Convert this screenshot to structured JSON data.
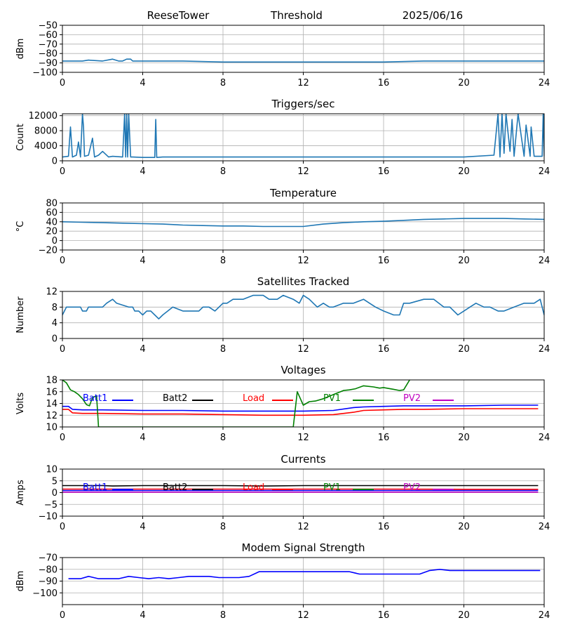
{
  "header": {
    "station": "ReeseTower",
    "mode": "Threshold",
    "date": "2025/06/16"
  },
  "chart_data": [
    {
      "type": "line",
      "title": "",
      "xlabel": "",
      "ylabel": "dBm",
      "xlim": [
        0,
        24
      ],
      "ylim": [
        -100,
        -50
      ],
      "x_ticks": [
        0,
        4,
        8,
        12,
        16,
        20,
        24
      ],
      "y_ticks": [
        -100,
        -90,
        -80,
        -70,
        -60,
        -50
      ],
      "grid": true,
      "series": [
        {
          "color": "#1f77b4",
          "x": [
            0,
            0.5,
            1,
            1.3,
            2,
            2.5,
            2.8,
            3,
            3.2,
            3.4,
            3.5,
            4,
            6,
            8,
            10,
            12,
            14,
            16,
            18,
            20,
            21,
            22,
            23,
            24
          ],
          "y": [
            -88,
            -88,
            -88,
            -87,
            -88,
            -86,
            -88,
            -88,
            -86,
            -86,
            -88,
            -88,
            -88,
            -89,
            -89,
            -89,
            -89,
            -89,
            -88,
            -88,
            -88,
            -88,
            -88,
            -88
          ]
        }
      ]
    },
    {
      "type": "line",
      "title": "Triggers/sec",
      "xlabel": "",
      "ylabel": "Count",
      "xlim": [
        0,
        24
      ],
      "ylim": [
        0,
        12500
      ],
      "x_ticks": [
        0,
        4,
        8,
        12,
        16,
        20,
        24
      ],
      "y_ticks": [
        0,
        4000,
        8000,
        12000
      ],
      "grid": true,
      "series": [
        {
          "color": "#1f77b4",
          "x": [
            0,
            0.3,
            0.4,
            0.5,
            0.7,
            0.8,
            0.9,
            1.0,
            1.05,
            1.1,
            1.3,
            1.5,
            1.6,
            1.8,
            2.0,
            2.3,
            2.5,
            3.0,
            3.1,
            3.15,
            3.2,
            3.25,
            3.3,
            3.4,
            3.5,
            4.0,
            4.6,
            4.65,
            4.7,
            5,
            8,
            12,
            16,
            20,
            21.5,
            21.7,
            21.8,
            21.9,
            22.0,
            22.1,
            22.3,
            22.4,
            22.5,
            22.7,
            23.0,
            23.1,
            23.3,
            23.35,
            23.5,
            23.9,
            23.95,
            24
          ],
          "y": [
            1000,
            1200,
            9000,
            1000,
            1500,
            5000,
            1000,
            12500,
            9000,
            1200,
            1500,
            6000,
            1000,
            1500,
            2500,
            1000,
            1200,
            1000,
            12500,
            1000,
            12500,
            1000,
            12500,
            1000,
            1000,
            900,
            900,
            11000,
            900,
            1000,
            1000,
            1000,
            1000,
            1000,
            1500,
            12500,
            1000,
            12500,
            2000,
            12500,
            2500,
            11000,
            1200,
            12500,
            1200,
            9500,
            1200,
            9000,
            1200,
            1200,
            12500,
            1200
          ]
        }
      ]
    },
    {
      "type": "line",
      "title": "Temperature",
      "xlabel": "",
      "ylabel": "°C",
      "xlim": [
        0,
        24
      ],
      "ylim": [
        -20,
        80
      ],
      "x_ticks": [
        0,
        4,
        8,
        12,
        16,
        20,
        24
      ],
      "y_ticks": [
        -20,
        0,
        20,
        40,
        60,
        80
      ],
      "grid": true,
      "series": [
        {
          "color": "#1f77b4",
          "x": [
            0,
            1,
            2,
            3,
            4,
            5,
            6,
            7,
            8,
            9,
            10,
            11,
            12,
            13,
            14,
            15,
            16,
            17,
            18,
            19,
            20,
            21,
            22,
            23,
            24
          ],
          "y": [
            40,
            39,
            38,
            37,
            36,
            35,
            33,
            32,
            31,
            31,
            30,
            30,
            30,
            35,
            38,
            40,
            41,
            43,
            45,
            46,
            47,
            47,
            47,
            46,
            45
          ]
        }
      ]
    },
    {
      "type": "line",
      "title": "Satellites Tracked",
      "xlabel": "",
      "ylabel": "Number",
      "xlim": [
        0,
        24
      ],
      "ylim": [
        0,
        12
      ],
      "x_ticks": [
        0,
        4,
        8,
        12,
        16,
        20,
        24
      ],
      "y_ticks": [
        0,
        4,
        8,
        12
      ],
      "grid": true,
      "series": [
        {
          "color": "#1f77b4",
          "x": [
            0,
            0.1,
            0.2,
            0.9,
            1.0,
            1.2,
            1.3,
            2.0,
            2.2,
            2.5,
            2.7,
            3.3,
            3.5,
            3.6,
            3.8,
            4.0,
            4.2,
            4.4,
            4.6,
            4.8,
            5.0,
            5.5,
            6.0,
            6.8,
            7.0,
            7.3,
            7.6,
            8.0,
            8.2,
            8.5,
            9.0,
            9.5,
            10.0,
            10.3,
            10.7,
            11.0,
            11.5,
            11.8,
            12.0,
            12.3,
            12.5,
            12.7,
            13.0,
            13.3,
            13.5,
            14.0,
            14.5,
            15.0,
            15.3,
            15.6,
            16.0,
            16.5,
            16.8,
            17.0,
            17.3,
            18.0,
            18.5,
            19.0,
            19.3,
            19.7,
            20.0,
            20.3,
            20.6,
            21.0,
            21.3,
            21.7,
            22.0,
            22.5,
            23.0,
            23.5,
            23.8,
            24
          ],
          "y": [
            6,
            7,
            8,
            8,
            7,
            7,
            8,
            8,
            9,
            10,
            9,
            8,
            8,
            7,
            7,
            6,
            7,
            7,
            6,
            5,
            6,
            8,
            7,
            7,
            8,
            8,
            7,
            9,
            9,
            10,
            10,
            11,
            11,
            10,
            10,
            11,
            10,
            9,
            11,
            10,
            9,
            8,
            9,
            8,
            8,
            9,
            9,
            10,
            9,
            8,
            7,
            6,
            6,
            9,
            9,
            10,
            10,
            8,
            8,
            6,
            7,
            8,
            9,
            8,
            8,
            7,
            7,
            8,
            9,
            9,
            10,
            6
          ]
        }
      ]
    },
    {
      "type": "line",
      "title": "Voltages",
      "xlabel": "",
      "ylabel": "Volts",
      "xlim": [
        0,
        24
      ],
      "ylim": [
        10,
        18
      ],
      "x_ticks": [
        0,
        4,
        8,
        12,
        16,
        20,
        24
      ],
      "y_ticks": [
        10,
        12,
        14,
        16,
        18
      ],
      "grid": true,
      "legend": [
        {
          "label": "Batt1",
          "color": "#0000ff"
        },
        {
          "label": "Batt2",
          "color": "#000000"
        },
        {
          "label": "Load",
          "color": "#ff0000"
        },
        {
          "label": "PV1",
          "color": "#008000"
        },
        {
          "label": "PV2",
          "color": "#bf00bf"
        }
      ],
      "series": [
        {
          "name": "Batt1",
          "color": "#0000ff",
          "x": [
            0,
            0.3,
            0.5,
            1.0,
            2.0,
            4.0,
            6.0,
            8.0,
            10.0,
            12.0,
            13.5,
            14.5,
            15.0,
            16.0,
            17.0,
            18.0,
            20.0,
            22.0,
            23.7
          ],
          "y": [
            13.5,
            13.5,
            13.0,
            12.9,
            12.9,
            12.8,
            12.8,
            12.7,
            12.7,
            12.7,
            12.8,
            13.3,
            13.4,
            13.5,
            13.6,
            13.6,
            13.6,
            13.7,
            13.7
          ]
        },
        {
          "name": "Load",
          "color": "#ff0000",
          "x": [
            0,
            0.3,
            0.5,
            1.0,
            2.0,
            4.0,
            6.0,
            8.0,
            10.0,
            12.0,
            13.5,
            14.5,
            15.0,
            16.0,
            17.0,
            18.0,
            20.0,
            22.0,
            23.7
          ],
          "y": [
            13.0,
            13.0,
            12.4,
            12.3,
            12.3,
            12.2,
            12.2,
            12.1,
            12.0,
            12.0,
            12.1,
            12.5,
            12.8,
            12.9,
            13.0,
            13.0,
            13.1,
            13.1,
            13.1
          ]
        },
        {
          "name": "PV1",
          "color": "#008000",
          "x": [
            0,
            0.2,
            0.4,
            0.6,
            0.8,
            1.0,
            1.2,
            1.35,
            1.5,
            1.7,
            1.8,
            11.5,
            11.7,
            12.0,
            12.3,
            12.6,
            13.0,
            13.5,
            14.0,
            14.3,
            14.6,
            15.0,
            15.5,
            15.8,
            16.0,
            16.5,
            16.8,
            17.0,
            17.3
          ],
          "y": [
            18.2,
            17.5,
            16.3,
            16.0,
            15.5,
            14.8,
            13.8,
            13.6,
            15.0,
            15.3,
            10.0,
            10.0,
            16.0,
            13.7,
            14.3,
            14.4,
            14.8,
            15.5,
            16.2,
            16.3,
            16.5,
            17.0,
            16.8,
            16.6,
            16.7,
            16.4,
            16.2,
            16.3,
            18.2
          ]
        }
      ]
    },
    {
      "type": "line",
      "title": "Currents",
      "xlabel": "",
      "ylabel": "Amps",
      "xlim": [
        0,
        24
      ],
      "ylim": [
        -10,
        10
      ],
      "x_ticks": [
        0,
        4,
        8,
        12,
        16,
        20,
        24
      ],
      "y_ticks": [
        -10,
        -5,
        0,
        5,
        10
      ],
      "grid": true,
      "legend": [
        {
          "label": "Batt1",
          "color": "#0000ff"
        },
        {
          "label": "Batt2",
          "color": "#000000"
        },
        {
          "label": "Load",
          "color": "#ff0000"
        },
        {
          "label": "PV1",
          "color": "#008000"
        },
        {
          "label": "PV2",
          "color": "#bf00bf"
        }
      ],
      "series": [
        {
          "name": "Batt2",
          "color": "#000000",
          "x": [
            0,
            2,
            2.5,
            4,
            6,
            8,
            10,
            12,
            14,
            16,
            18,
            20,
            22,
            23.7
          ],
          "y": [
            3.0,
            3.0,
            2.8,
            3.0,
            3.0,
            3.0,
            2.8,
            3.0,
            3.0,
            3.0,
            3.0,
            3.0,
            3.0,
            3.0
          ]
        },
        {
          "name": "Load",
          "color": "#ff0000",
          "x": [
            0,
            4,
            8,
            12,
            16,
            20,
            23.7
          ],
          "y": [
            1.5,
            1.5,
            1.5,
            1.5,
            1.5,
            1.4,
            1.4
          ]
        },
        {
          "name": "Batt1",
          "color": "#0000ff",
          "x": [
            0,
            4,
            8,
            12,
            16,
            20,
            23.7
          ],
          "y": [
            0.9,
            0.9,
            0.9,
            0.9,
            0.9,
            0.9,
            0.9
          ]
        },
        {
          "name": "PV2",
          "color": "#bf00bf",
          "x": [
            0,
            4,
            8,
            12,
            16,
            20,
            23.7
          ],
          "y": [
            0.2,
            0.2,
            0.2,
            0.2,
            0.2,
            0.2,
            0.2
          ]
        }
      ]
    },
    {
      "type": "line",
      "title": "Modem Signal Strength",
      "xlabel": "",
      "ylabel": "dBm",
      "xlim": [
        0,
        24
      ],
      "ylim": [
        -110,
        -70
      ],
      "x_ticks": [
        0,
        4,
        8,
        12,
        16,
        20,
        24
      ],
      "y_ticks": [
        -100,
        -90,
        -80,
        -70
      ],
      "grid": true,
      "series": [
        {
          "color": "#0000ff",
          "x": [
            0.3,
            0.9,
            1.3,
            1.8,
            2.8,
            3.3,
            3.8,
            4.3,
            4.8,
            5.3,
            5.8,
            6.3,
            7.3,
            7.8,
            8.8,
            9.3,
            9.8,
            10.3,
            11.3,
            12.3,
            13.8,
            14.3,
            14.8,
            15.3,
            16.3,
            17.8,
            18.3,
            18.8,
            19.3,
            20.3,
            21.3,
            22.8,
            23.8
          ],
          "y": [
            -88,
            -88,
            -86,
            -88,
            -88,
            -86,
            -87,
            -88,
            -87,
            -88,
            -87,
            -86,
            -86,
            -87,
            -87,
            -86,
            -82,
            -82,
            -82,
            -82,
            -82,
            -82,
            -84,
            -84,
            -84,
            -84,
            -81,
            -80,
            -81,
            -81,
            -81,
            -81,
            -81
          ]
        }
      ]
    }
  ]
}
